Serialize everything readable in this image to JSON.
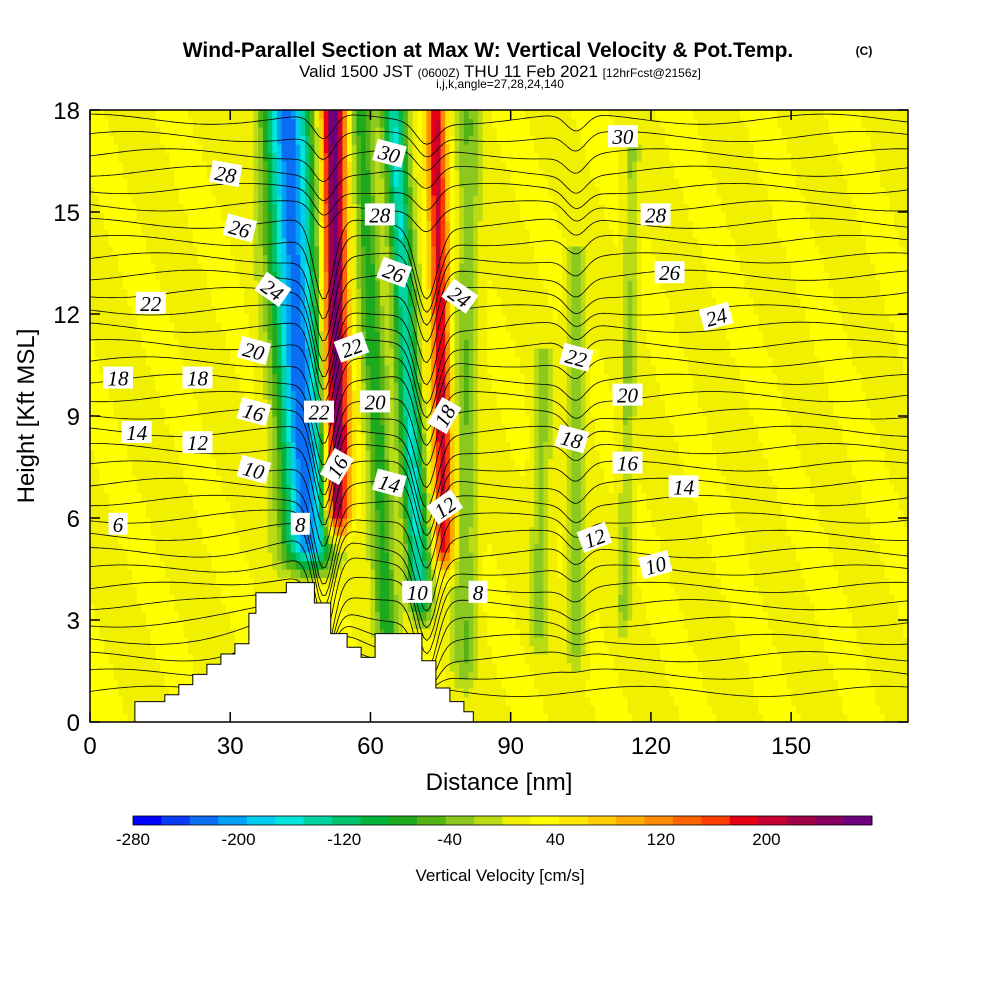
{
  "title": {
    "main": "Wind-Parallel Section at Max W: Vertical Velocity & Pot.Temp.",
    "copyright": "(C)",
    "valid_prefix": "Valid 1500 JST",
    "valid_utc": "(0600Z)",
    "valid_date": "THU 11 Feb 2021",
    "forecast": "[12hrFcst@2156z]",
    "indices": "i,j,k,angle=27,28,24,140"
  },
  "chart_data": {
    "type": "heatmap",
    "xlabel": "Distance [nm]",
    "ylabel": "Height [Kft MSL]",
    "xlim": [
      0,
      175
    ],
    "ylim": [
      0,
      18
    ],
    "x_ticks": [
      "0",
      "30",
      "60",
      "90",
      "120",
      "150"
    ],
    "x_tick_values": [
      0,
      30,
      60,
      90,
      120,
      150
    ],
    "y_ticks": [
      "0",
      "3",
      "6",
      "9",
      "12",
      "15",
      "18"
    ],
    "y_tick_values": [
      0,
      3,
      6,
      9,
      12,
      15,
      18
    ],
    "colorbar": {
      "label": "Vertical Velocity [cm/s]",
      "range": [
        -280,
        280
      ],
      "tick_labels": [
        "-280",
        "-200",
        "-120",
        "-40",
        "40",
        "120",
        "200"
      ],
      "tick_values": [
        -280,
        -200,
        -120,
        -40,
        40,
        120,
        200
      ],
      "colors": [
        "#0000ff",
        "#0a3cf5",
        "#0a6ef5",
        "#00a0f5",
        "#00cdf0",
        "#00e6dc",
        "#00d2a0",
        "#00c36e",
        "#00b43c",
        "#1eaa1e",
        "#55b414",
        "#8cc81e",
        "#b9dc14",
        "#f0f000",
        "#ffff00",
        "#ffe600",
        "#ffcd00",
        "#ffaa00",
        "#ff8c00",
        "#ff6400",
        "#ff3c00",
        "#e60014",
        "#c80032",
        "#a00046",
        "#870060",
        "#6e007d"
      ]
    },
    "velocity_field": {
      "units": "cm/s",
      "background": 20,
      "features": [
        {
          "x_center": 47,
          "top_x": 42,
          "z_bottom": 4.0,
          "z_top": 18,
          "w_peak": -250,
          "half_width_nm": 5
        },
        {
          "x_center": 53,
          "top_x": 52,
          "z_bottom": 5.0,
          "z_top": 18,
          "w_peak": 260,
          "half_width_nm": 2.5
        },
        {
          "x_center": 64,
          "top_x": 58,
          "z_bottom": 1.5,
          "z_top": 18,
          "w_peak": -100,
          "half_width_nm": 2.5
        },
        {
          "x_center": 71,
          "top_x": 65,
          "z_bottom": 2.5,
          "z_top": 18,
          "w_peak": -170,
          "half_width_nm": 2.5
        },
        {
          "x_center": 76,
          "top_x": 74,
          "z_bottom": 4.0,
          "z_top": 18,
          "w_peak": 180,
          "half_width_nm": 2
        },
        {
          "x_center": 80,
          "top_x": 81,
          "z_bottom": 0.5,
          "z_top": 18,
          "w_peak": -60,
          "half_width_nm": 2.5
        },
        {
          "x_center": 96,
          "top_x": 97,
          "z_bottom": 1.5,
          "z_top": 11,
          "w_peak": -50,
          "half_width_nm": 2
        },
        {
          "x_center": 104,
          "top_x": 104,
          "z_bottom": 1.0,
          "z_top": 14,
          "w_peak": -55,
          "half_width_nm": 2
        },
        {
          "x_center": 114,
          "top_x": 116,
          "z_bottom": 2.0,
          "z_top": 17,
          "w_peak": -45,
          "half_width_nm": 1.5
        }
      ]
    },
    "terrain_profile": [
      {
        "x": 9.6,
        "z": 0.6
      },
      {
        "x": 16,
        "z": 0.6
      },
      {
        "x": 16,
        "z": 0.8
      },
      {
        "x": 19,
        "z": 0.8
      },
      {
        "x": 19,
        "z": 1.1
      },
      {
        "x": 22,
        "z": 1.1
      },
      {
        "x": 22,
        "z": 1.4
      },
      {
        "x": 25,
        "z": 1.4
      },
      {
        "x": 25,
        "z": 1.7
      },
      {
        "x": 28,
        "z": 1.7
      },
      {
        "x": 28,
        "z": 2.0
      },
      {
        "x": 31,
        "z": 2.0
      },
      {
        "x": 31,
        "z": 2.3
      },
      {
        "x": 34,
        "z": 2.3
      },
      {
        "x": 34,
        "z": 3.2
      },
      {
        "x": 35.5,
        "z": 3.2
      },
      {
        "x": 35.5,
        "z": 3.8
      },
      {
        "x": 42,
        "z": 3.8
      },
      {
        "x": 42,
        "z": 4.1
      },
      {
        "x": 48,
        "z": 4.1
      },
      {
        "x": 48,
        "z": 3.5
      },
      {
        "x": 51.5,
        "z": 3.5
      },
      {
        "x": 51.5,
        "z": 2.6
      },
      {
        "x": 55,
        "z": 2.6
      },
      {
        "x": 55,
        "z": 2.2
      },
      {
        "x": 58,
        "z": 2.2
      },
      {
        "x": 58,
        "z": 1.9
      },
      {
        "x": 61,
        "z": 1.9
      },
      {
        "x": 61,
        "z": 2.6
      },
      {
        "x": 71,
        "z": 2.6
      },
      {
        "x": 71,
        "z": 1.8
      },
      {
        "x": 74,
        "z": 1.8
      },
      {
        "x": 74,
        "z": 1.0
      },
      {
        "x": 77,
        "z": 1.0
      },
      {
        "x": 77,
        "z": 0.6
      },
      {
        "x": 80,
        "z": 0.6
      },
      {
        "x": 80,
        "z": 0.3
      },
      {
        "x": 82,
        "z": 0.3
      }
    ],
    "theta_contours": [
      6,
      8,
      10,
      12,
      14,
      16,
      18,
      20,
      22,
      24,
      26,
      28,
      30
    ],
    "contour_labels": [
      {
        "text": "6",
        "x": 6,
        "z": 5.8,
        "angle": 0
      },
      {
        "text": "8",
        "x": 45,
        "z": 5.8,
        "angle": 0
      },
      {
        "text": "8",
        "x": 83,
        "z": 3.8,
        "angle": 0
      },
      {
        "text": "10",
        "x": 35,
        "z": 7.4,
        "angle": 15
      },
      {
        "text": "10",
        "x": 70,
        "z": 3.8,
        "angle": 0
      },
      {
        "text": "10",
        "x": 121,
        "z": 4.6,
        "angle": -15
      },
      {
        "text": "12",
        "x": 23,
        "z": 8.2,
        "angle": 0
      },
      {
        "text": "12",
        "x": 76,
        "z": 6.3,
        "angle": -35
      },
      {
        "text": "12",
        "x": 108,
        "z": 5.4,
        "angle": -20
      },
      {
        "text": "14",
        "x": 10,
        "z": 8.5,
        "angle": 0
      },
      {
        "text": "14",
        "x": 64,
        "z": 7.0,
        "angle": 15
      },
      {
        "text": "14",
        "x": 127,
        "z": 6.9,
        "angle": 0
      },
      {
        "text": "16",
        "x": 35,
        "z": 9.1,
        "angle": 15
      },
      {
        "text": "16",
        "x": 53,
        "z": 7.5,
        "angle": -60
      },
      {
        "text": "16",
        "x": 115,
        "z": 7.6,
        "angle": 0
      },
      {
        "text": "18",
        "x": 6,
        "z": 10.1,
        "angle": 0
      },
      {
        "text": "18",
        "x": 23,
        "z": 10.1,
        "angle": 0
      },
      {
        "text": "18",
        "x": 76,
        "z": 9.0,
        "angle": -60
      },
      {
        "text": "18",
        "x": 103,
        "z": 8.3,
        "angle": 15
      },
      {
        "text": "20",
        "x": 35,
        "z": 10.9,
        "angle": 15
      },
      {
        "text": "20",
        "x": 61,
        "z": 9.4,
        "angle": 0
      },
      {
        "text": "20",
        "x": 115,
        "z": 9.6,
        "angle": 0
      },
      {
        "text": "22",
        "x": 13,
        "z": 12.3,
        "angle": 0
      },
      {
        "text": "22",
        "x": 49,
        "z": 9.1,
        "angle": 0
      },
      {
        "text": "22",
        "x": 56,
        "z": 11.0,
        "angle": -20
      },
      {
        "text": "22",
        "x": 104,
        "z": 10.7,
        "angle": 15
      },
      {
        "text": "24",
        "x": 39,
        "z": 12.7,
        "angle": 35
      },
      {
        "text": "24",
        "x": 79,
        "z": 12.5,
        "angle": 35
      },
      {
        "text": "24",
        "x": 134,
        "z": 11.9,
        "angle": -15
      },
      {
        "text": "26",
        "x": 32,
        "z": 14.5,
        "angle": 15
      },
      {
        "text": "26",
        "x": 65,
        "z": 13.2,
        "angle": 20
      },
      {
        "text": "26",
        "x": 124,
        "z": 13.2,
        "angle": 0
      },
      {
        "text": "28",
        "x": 29,
        "z": 16.1,
        "angle": 10
      },
      {
        "text": "28",
        "x": 62,
        "z": 14.9,
        "angle": 0
      },
      {
        "text": "28",
        "x": 121,
        "z": 14.9,
        "angle": 0
      },
      {
        "text": "30",
        "x": 64,
        "z": 16.7,
        "angle": 15
      },
      {
        "text": "30",
        "x": 114,
        "z": 17.2,
        "angle": 0
      }
    ]
  }
}
